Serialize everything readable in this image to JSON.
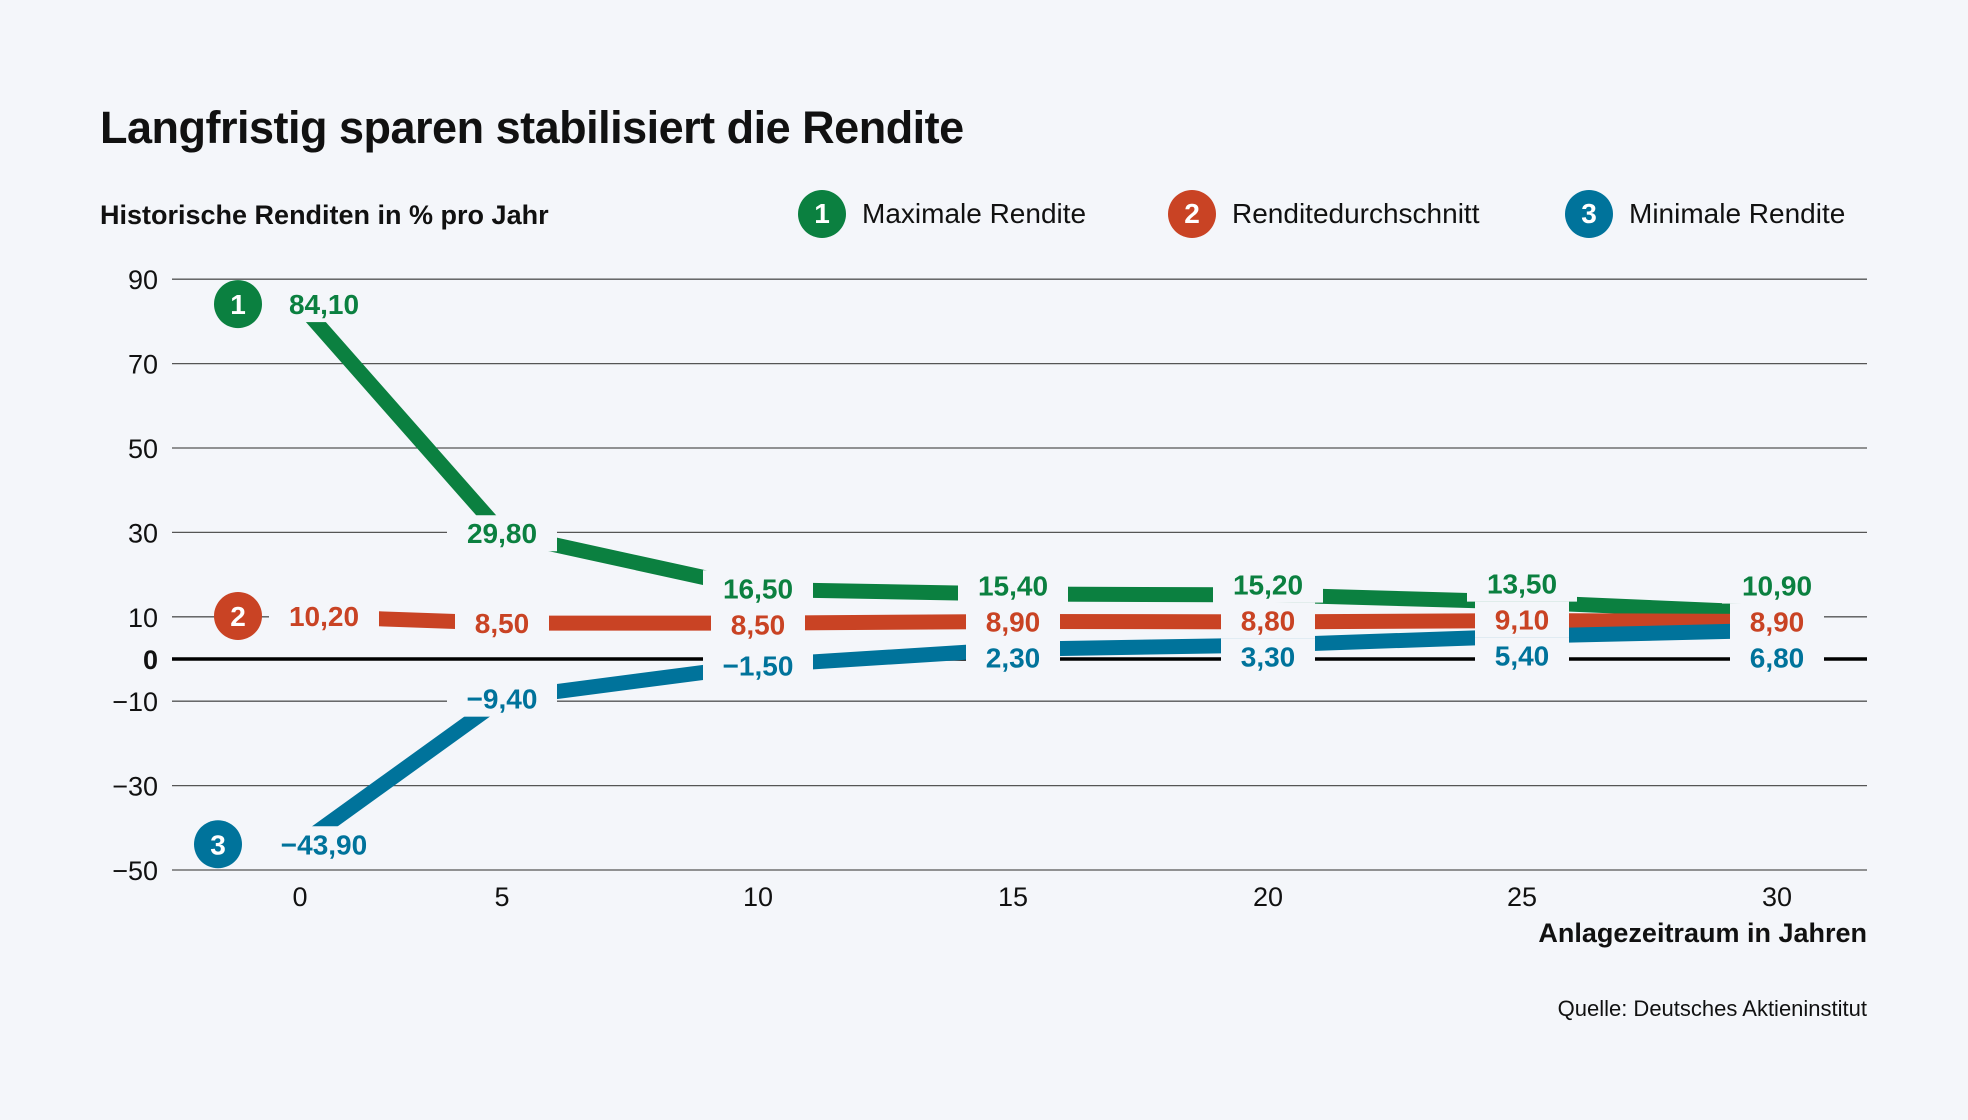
{
  "title": "Langfristig sparen stabilisiert die Rendite",
  "subtitle": "Historische Renditen in % pro Jahr",
  "source": "Quelle: Deutsches Aktieninstitut",
  "legend": [
    {
      "number": "1",
      "label": "Maximale Rendite",
      "color": "#0b8040"
    },
    {
      "number": "2",
      "label": "Renditedurchschnitt",
      "color": "#c94324"
    },
    {
      "number": "3",
      "label": "Minimale Rendite",
      "color": "#00739b"
    }
  ],
  "chart_data": {
    "type": "line",
    "title": "Langfristig sparen stabilisiert die Rendite",
    "ylabel": "Historische Renditen in % pro Jahr",
    "xlabel": "Anlagezeitraum in Jahren",
    "categories": [
      "0",
      "5",
      "10",
      "15",
      "20",
      "25",
      "30"
    ],
    "y_ticks": [
      90,
      70,
      50,
      30,
      10,
      0,
      -10,
      -30,
      -50
    ],
    "y_tick_labels": [
      "90",
      "70",
      "50",
      "30",
      "10",
      "0",
      "−10",
      "−30",
      "−50"
    ],
    "ylim": [
      -50,
      90
    ],
    "grid": true,
    "legend_position": "top-right",
    "series": [
      {
        "name": "Maximale Rendite",
        "badge": "1",
        "color": "#0b8040",
        "values": [
          84.1,
          29.8,
          16.5,
          15.4,
          15.2,
          13.5,
          10.9
        ],
        "labels": [
          "84,10",
          "29,80",
          "16,50",
          "15,40",
          "15,20",
          "13,50",
          "10,90"
        ]
      },
      {
        "name": "Renditedurchschnitt",
        "badge": "2",
        "color": "#c94324",
        "values": [
          10.2,
          8.5,
          8.5,
          8.9,
          8.8,
          9.1,
          8.9
        ],
        "labels": [
          "10,20",
          "8,50",
          "8,50",
          "8,90",
          "8,80",
          "9,10",
          "8,90"
        ]
      },
      {
        "name": "Minimale Rendite",
        "badge": "3",
        "color": "#00739b",
        "values": [
          -43.9,
          -9.4,
          -1.5,
          2.3,
          3.3,
          5.4,
          6.8
        ],
        "labels": [
          "−43,90",
          "−9,40",
          "−1,50",
          "2,30",
          "3,30",
          "5,40",
          "6,80"
        ]
      }
    ]
  }
}
